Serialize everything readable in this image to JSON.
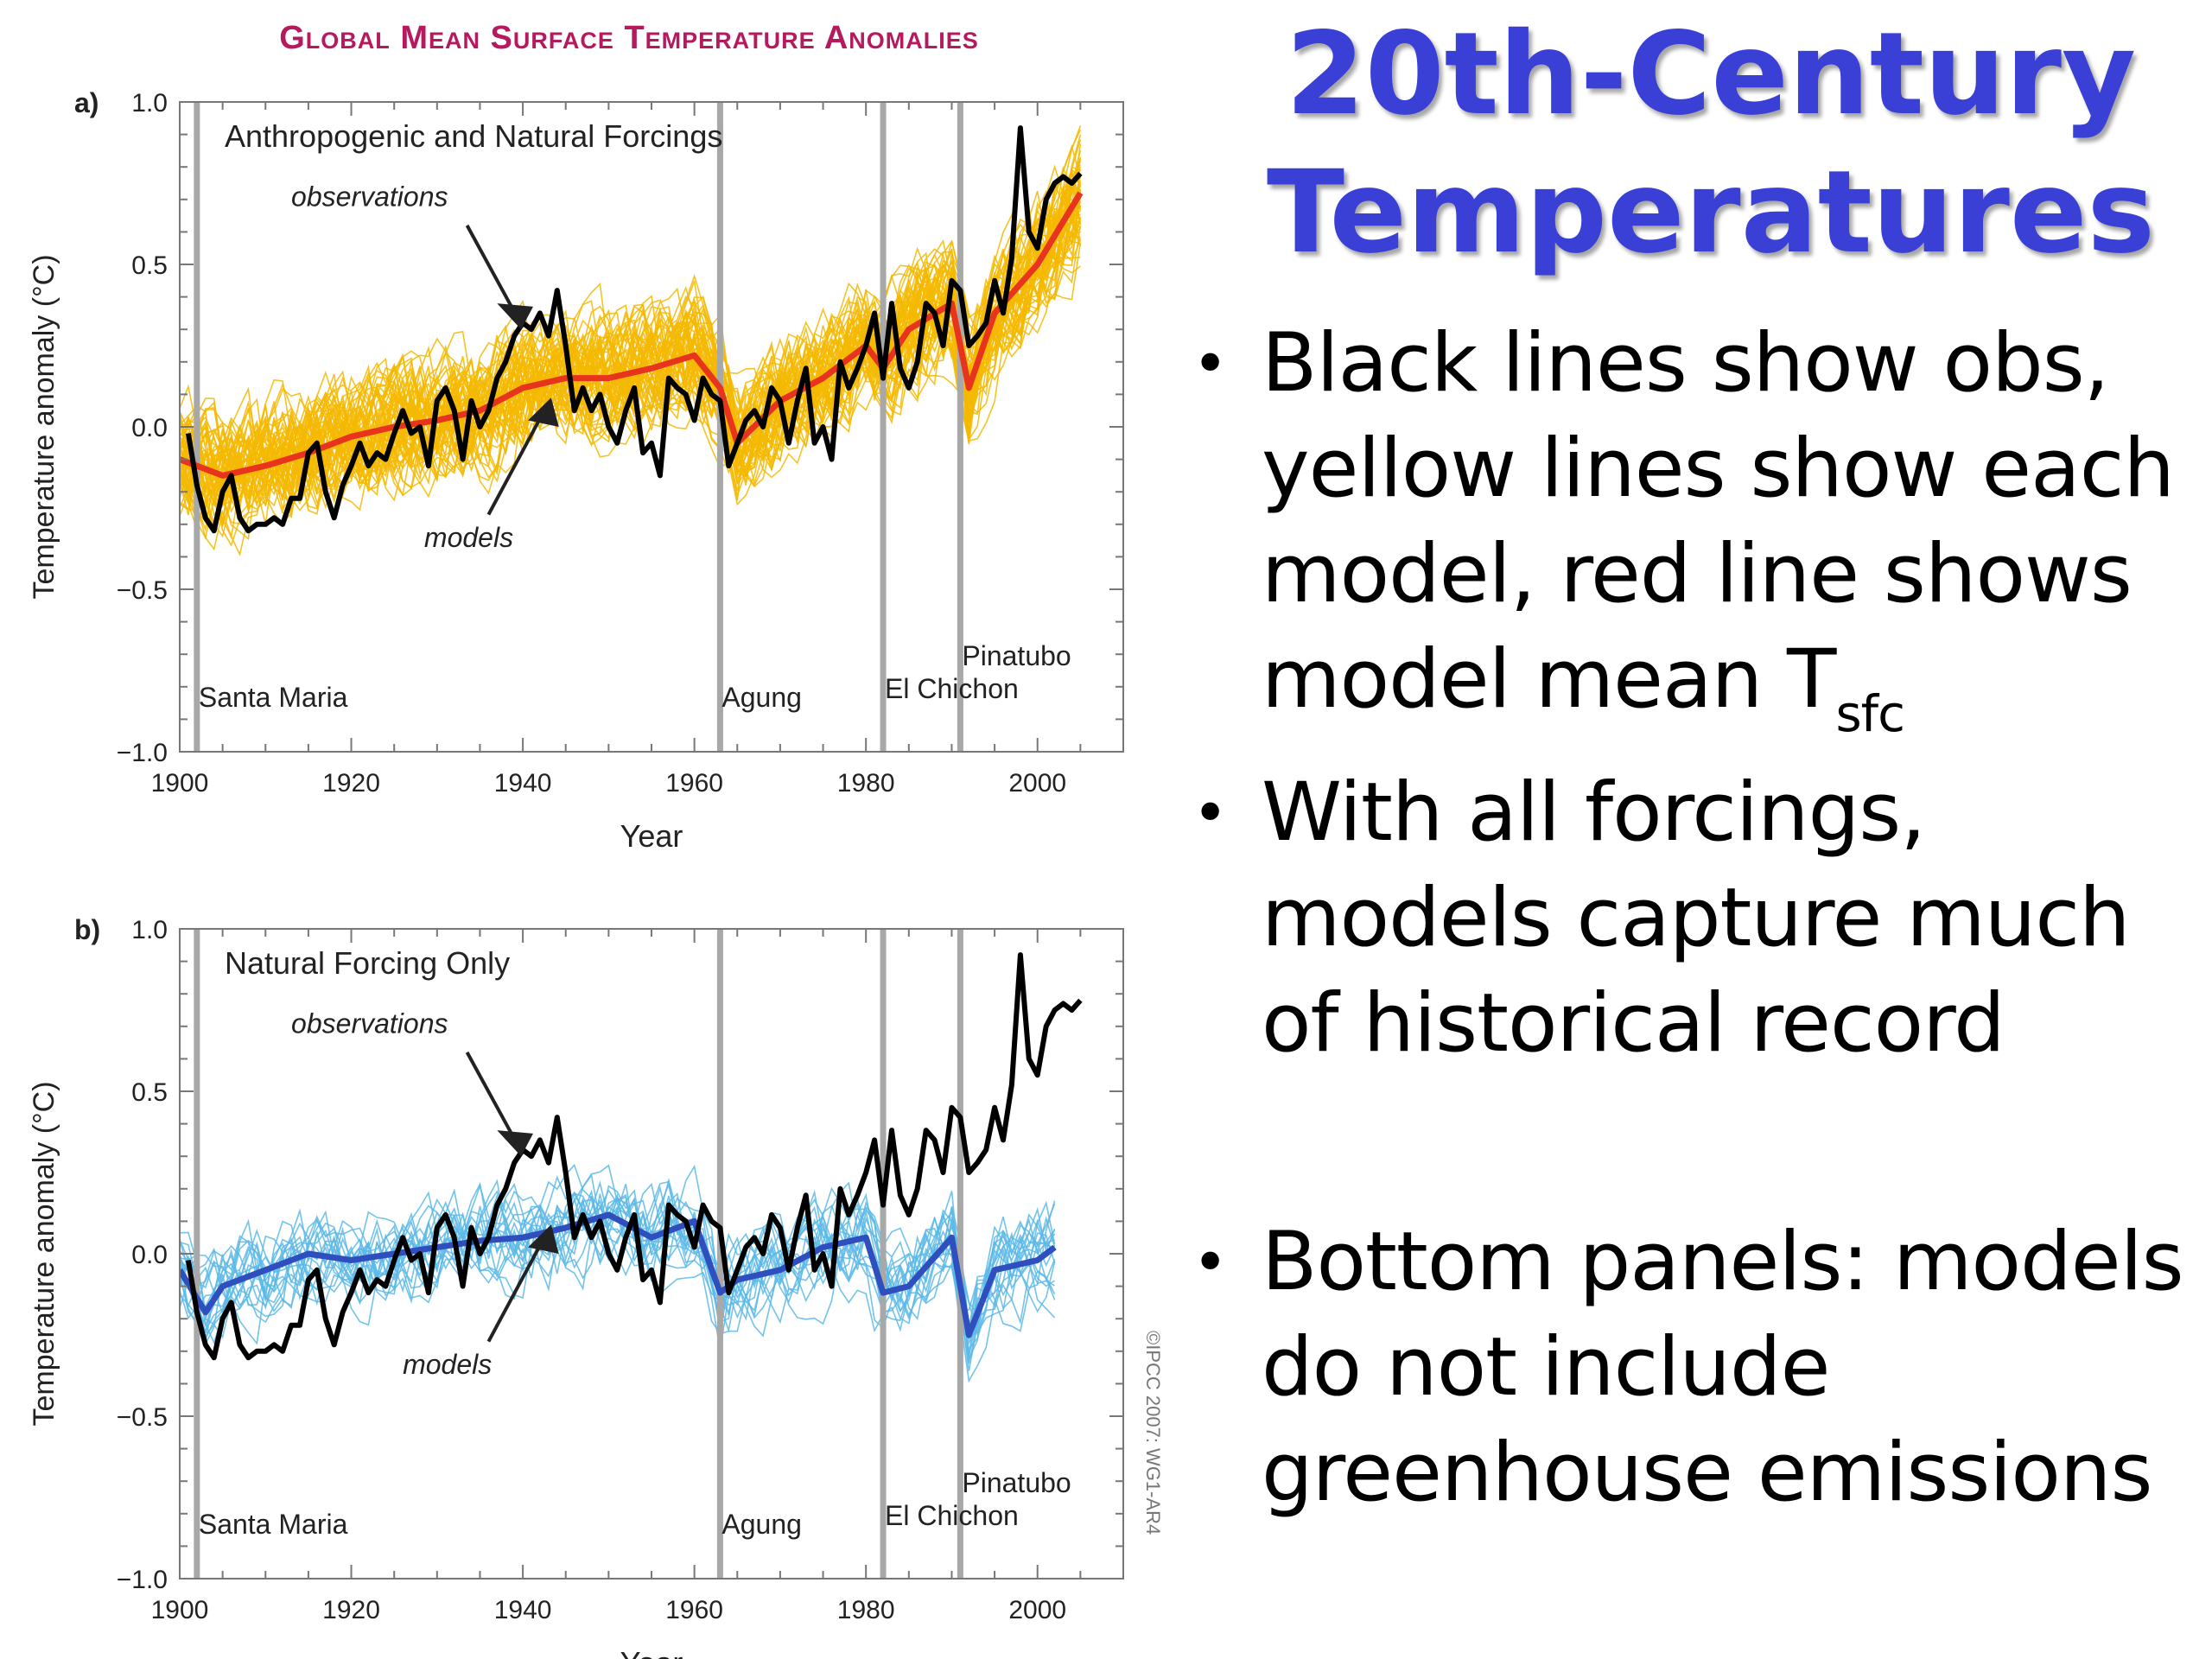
{
  "slide": {
    "title_lines": [
      "20th-Century",
      "Temperatures"
    ],
    "bullets": [
      {
        "lines": [
          "Black lines show obs,",
          "yellow lines show each",
          "model, red line shows"
        ],
        "last_line_main": "model mean T",
        "last_line_sub": "sfc"
      },
      {
        "lines": [
          "With all forcings,",
          "models capture much",
          "of historical record"
        ]
      },
      {
        "lines": [
          "Bottom panels: models",
          "do not include",
          "greenhouse emissions"
        ]
      }
    ]
  },
  "figure": {
    "title": "Global Mean Surface Temperature Anomalies",
    "copyright": "©IPCC 2007: WG1-AR4"
  },
  "colors": {
    "observations": "#000000",
    "models_a": "#f5b800",
    "mean_a": "#e8341c",
    "models_b": "#5ab8e6",
    "mean_b": "#2f4fbf",
    "volcano_line": "#a8a8a8",
    "figure_title": "#b5195e"
  },
  "chart_data": [
    {
      "type": "line",
      "panel_label": "a)",
      "title": "Anthropogenic and Natural Forcings",
      "xlabel": "Year",
      "ylabel": "Temperature anomaly (°C)",
      "xlim": [
        1900,
        2010
      ],
      "ylim": [
        -1.0,
        1.0
      ],
      "xticks": [
        1900,
        1920,
        1940,
        1960,
        1980,
        2000
      ],
      "yticks": [
        -1.0,
        -0.5,
        0.0,
        0.5,
        1.0
      ],
      "ytick_labels": [
        "−1.0",
        "−0.5",
        "0.0",
        "0.5",
        "1.0"
      ],
      "grid": false,
      "annotations": {
        "observations": "observations",
        "models": "models"
      },
      "volcanoes": [
        {
          "name": "Santa Maria",
          "year": 1902
        },
        {
          "name": "Agung",
          "year": 1963
        },
        {
          "name": "El Chichon",
          "year": 1982
        },
        {
          "name": "Pinatubo",
          "year": 1991
        }
      ],
      "series": [
        {
          "role": "observations",
          "x": [
            1901,
            1902,
            1903,
            1904,
            1905,
            1906,
            1907,
            1908,
            1909,
            1910,
            1911,
            1912,
            1913,
            1914,
            1915,
            1916,
            1917,
            1918,
            1919,
            1920,
            1921,
            1922,
            1923,
            1924,
            1925,
            1926,
            1927,
            1928,
            1929,
            1930,
            1931,
            1932,
            1933,
            1934,
            1935,
            1936,
            1937,
            1938,
            1939,
            1940,
            1941,
            1942,
            1943,
            1944,
            1945,
            1946,
            1947,
            1948,
            1949,
            1950,
            1951,
            1952,
            1953,
            1954,
            1955,
            1956,
            1957,
            1958,
            1959,
            1960,
            1961,
            1962,
            1963,
            1964,
            1965,
            1966,
            1967,
            1968,
            1969,
            1970,
            1971,
            1972,
            1973,
            1974,
            1975,
            1976,
            1977,
            1978,
            1979,
            1980,
            1981,
            1982,
            1983,
            1984,
            1985,
            1986,
            1987,
            1988,
            1989,
            1990,
            1991,
            1992,
            1993,
            1994,
            1995,
            1996,
            1997,
            1998,
            1999,
            2000,
            2001,
            2002,
            2003,
            2004,
            2005
          ],
          "y": [
            -0.02,
            -0.18,
            -0.28,
            -0.32,
            -0.2,
            -0.15,
            -0.28,
            -0.32,
            -0.3,
            -0.3,
            -0.28,
            -0.3,
            -0.22,
            -0.22,
            -0.08,
            -0.05,
            -0.2,
            -0.28,
            -0.18,
            -0.12,
            -0.05,
            -0.12,
            -0.08,
            -0.1,
            -0.02,
            0.05,
            -0.02,
            0.0,
            -0.12,
            0.08,
            0.12,
            0.05,
            -0.1,
            0.08,
            0.0,
            0.05,
            0.15,
            0.2,
            0.28,
            0.32,
            0.3,
            0.35,
            0.28,
            0.42,
            0.25,
            0.05,
            0.12,
            0.05,
            0.1,
            0.0,
            -0.05,
            0.05,
            0.12,
            -0.08,
            -0.05,
            -0.15,
            0.15,
            0.12,
            0.1,
            0.02,
            0.15,
            0.1,
            0.08,
            -0.12,
            -0.05,
            0.02,
            0.05,
            0.0,
            0.12,
            0.08,
            -0.05,
            0.08,
            0.18,
            -0.05,
            0.0,
            -0.1,
            0.2,
            0.12,
            0.18,
            0.25,
            0.35,
            0.15,
            0.38,
            0.18,
            0.12,
            0.2,
            0.38,
            0.35,
            0.25,
            0.45,
            0.42,
            0.25,
            0.28,
            0.32,
            0.45,
            0.35,
            0.52,
            0.92,
            0.6,
            0.55,
            0.7,
            0.75,
            0.77,
            0.75,
            0.78
          ]
        },
        {
          "role": "model_mean",
          "x": [
            1900,
            1905,
            1910,
            1915,
            1920,
            1925,
            1930,
            1935,
            1940,
            1945,
            1950,
            1955,
            1960,
            1963,
            1965,
            1970,
            1975,
            1980,
            1982,
            1985,
            1990,
            1992,
            1995,
            2000,
            2005
          ],
          "y": [
            -0.1,
            -0.15,
            -0.12,
            -0.08,
            -0.03,
            0.0,
            0.02,
            0.05,
            0.12,
            0.15,
            0.15,
            0.18,
            0.22,
            0.12,
            -0.05,
            0.08,
            0.15,
            0.25,
            0.18,
            0.3,
            0.38,
            0.12,
            0.35,
            0.5,
            0.72
          ]
        }
      ]
    },
    {
      "type": "line",
      "panel_label": "b)",
      "title": "Natural Forcing Only",
      "xlabel": "Year",
      "ylabel": "Temperature anomaly (°C)",
      "xlim": [
        1900,
        2010
      ],
      "ylim": [
        -1.0,
        1.0
      ],
      "xticks": [
        1900,
        1920,
        1940,
        1960,
        1980,
        2000
      ],
      "yticks": [
        -1.0,
        -0.5,
        0.0,
        0.5,
        1.0
      ],
      "ytick_labels": [
        "−1.0",
        "−0.5",
        "0.0",
        "0.5",
        "1.0"
      ],
      "grid": false,
      "annotations": {
        "observations": "observations",
        "models": "models"
      },
      "volcanoes": [
        {
          "name": "Santa Maria",
          "year": 1902
        },
        {
          "name": "Agung",
          "year": 1963
        },
        {
          "name": "El Chichon",
          "year": 1982
        },
        {
          "name": "Pinatubo",
          "year": 1991
        }
      ],
      "series": [
        {
          "role": "observations",
          "x": [
            1901,
            1902,
            1903,
            1904,
            1905,
            1906,
            1907,
            1908,
            1909,
            1910,
            1911,
            1912,
            1913,
            1914,
            1915,
            1916,
            1917,
            1918,
            1919,
            1920,
            1921,
            1922,
            1923,
            1924,
            1925,
            1926,
            1927,
            1928,
            1929,
            1930,
            1931,
            1932,
            1933,
            1934,
            1935,
            1936,
            1937,
            1938,
            1939,
            1940,
            1941,
            1942,
            1943,
            1944,
            1945,
            1946,
            1947,
            1948,
            1949,
            1950,
            1951,
            1952,
            1953,
            1954,
            1955,
            1956,
            1957,
            1958,
            1959,
            1960,
            1961,
            1962,
            1963,
            1964,
            1965,
            1966,
            1967,
            1968,
            1969,
            1970,
            1971,
            1972,
            1973,
            1974,
            1975,
            1976,
            1977,
            1978,
            1979,
            1980,
            1981,
            1982,
            1983,
            1984,
            1985,
            1986,
            1987,
            1988,
            1989,
            1990,
            1991,
            1992,
            1993,
            1994,
            1995,
            1996,
            1997,
            1998,
            1999,
            2000,
            2001,
            2002,
            2003,
            2004,
            2005
          ],
          "y": [
            -0.02,
            -0.18,
            -0.28,
            -0.32,
            -0.2,
            -0.15,
            -0.28,
            -0.32,
            -0.3,
            -0.3,
            -0.28,
            -0.3,
            -0.22,
            -0.22,
            -0.08,
            -0.05,
            -0.2,
            -0.28,
            -0.18,
            -0.12,
            -0.05,
            -0.12,
            -0.08,
            -0.1,
            -0.02,
            0.05,
            -0.02,
            0.0,
            -0.12,
            0.08,
            0.12,
            0.05,
            -0.1,
            0.08,
            0.0,
            0.05,
            0.15,
            0.2,
            0.28,
            0.32,
            0.3,
            0.35,
            0.28,
            0.42,
            0.25,
            0.05,
            0.12,
            0.05,
            0.1,
            0.0,
            -0.05,
            0.05,
            0.12,
            -0.08,
            -0.05,
            -0.15,
            0.15,
            0.12,
            0.1,
            0.02,
            0.15,
            0.1,
            0.08,
            -0.12,
            -0.05,
            0.02,
            0.05,
            0.0,
            0.12,
            0.08,
            -0.05,
            0.08,
            0.18,
            -0.05,
            0.0,
            -0.1,
            0.2,
            0.12,
            0.18,
            0.25,
            0.35,
            0.15,
            0.38,
            0.18,
            0.12,
            0.2,
            0.38,
            0.35,
            0.25,
            0.45,
            0.42,
            0.25,
            0.28,
            0.32,
            0.45,
            0.35,
            0.52,
            0.92,
            0.6,
            0.55,
            0.7,
            0.75,
            0.77,
            0.75,
            0.78
          ]
        },
        {
          "role": "model_mean",
          "x": [
            1900,
            1903,
            1905,
            1910,
            1915,
            1920,
            1925,
            1930,
            1935,
            1940,
            1945,
            1950,
            1955,
            1960,
            1963,
            1965,
            1970,
            1975,
            1980,
            1982,
            1985,
            1990,
            1992,
            1995,
            2000,
            2002
          ],
          "y": [
            -0.05,
            -0.18,
            -0.1,
            -0.05,
            0.0,
            -0.02,
            0.0,
            0.02,
            0.04,
            0.05,
            0.08,
            0.12,
            0.05,
            0.1,
            -0.12,
            -0.08,
            -0.05,
            0.02,
            0.05,
            -0.12,
            -0.1,
            0.05,
            -0.25,
            -0.05,
            -0.02,
            0.02
          ]
        }
      ]
    }
  ]
}
